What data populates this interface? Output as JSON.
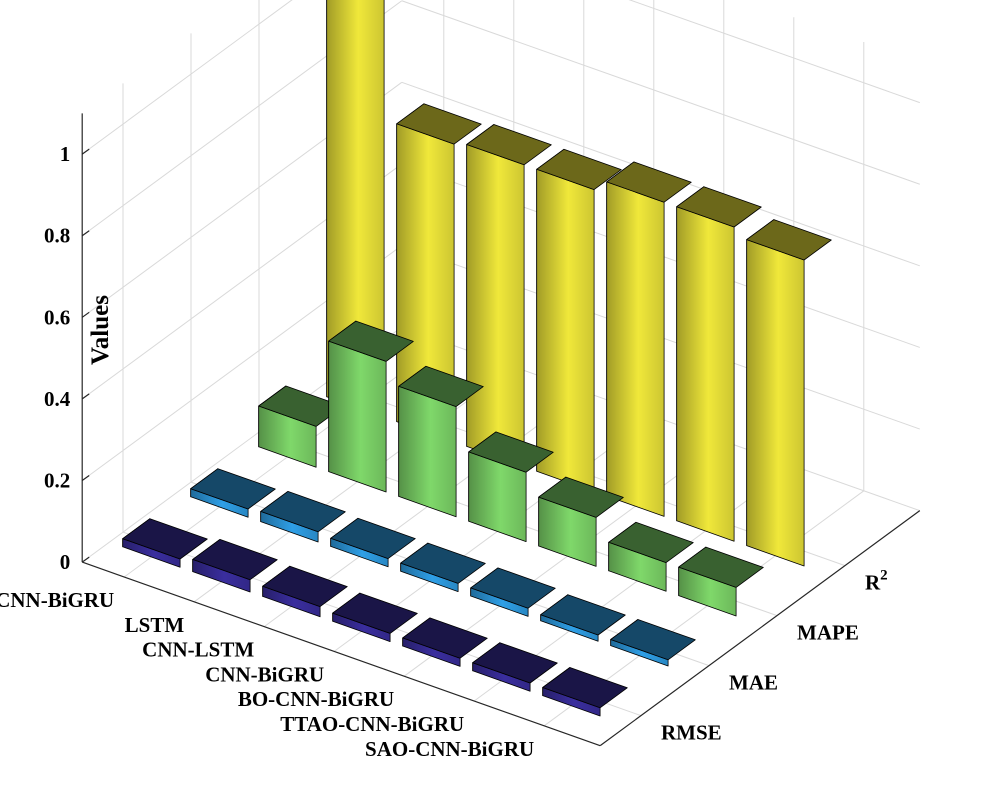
{
  "chart_data": {
    "type": "bar3d",
    "ylabel": "Values",
    "zlim": [
      0,
      1.1
    ],
    "z_ticks": [
      0,
      0.2,
      0.4,
      0.6,
      0.8,
      1
    ],
    "z_tick_labels": [
      "0",
      "0.2",
      "0.4",
      "0.6",
      "0.8",
      "1"
    ],
    "models": [
      "ISAO-CNN-BiGRU",
      "LSTM",
      "CNN-LSTM",
      "CNN-BiGRU",
      "BO-CNN-BiGRU",
      "TTAO-CNN-BiGRU",
      "SAO-CNN-BiGRU"
    ],
    "metrics": [
      "RMSE",
      "MAE",
      "MAPE",
      "R"
    ],
    "metric_superscripts": [
      "",
      "",
      "",
      "2"
    ],
    "series": [
      {
        "name": "RMSE",
        "color": "#3a2e9e",
        "values": [
          0.02,
          0.03,
          0.025,
          0.02,
          0.02,
          0.02,
          0.02
        ]
      },
      {
        "name": "MAE",
        "color": "#2f9fe6",
        "values": [
          0.02,
          0.025,
          0.02,
          0.02,
          0.02,
          0.015,
          0.015
        ]
      },
      {
        "name": "MAPE",
        "color": "#7fd86a",
        "values": [
          0.1,
          0.32,
          0.27,
          0.17,
          0.12,
          0.07,
          0.07
        ]
      },
      {
        "name": "R^2",
        "color": "#f0e83a",
        "values": [
          1.07,
          0.73,
          0.74,
          0.74,
          0.77,
          0.77,
          0.75
        ]
      }
    ]
  }
}
